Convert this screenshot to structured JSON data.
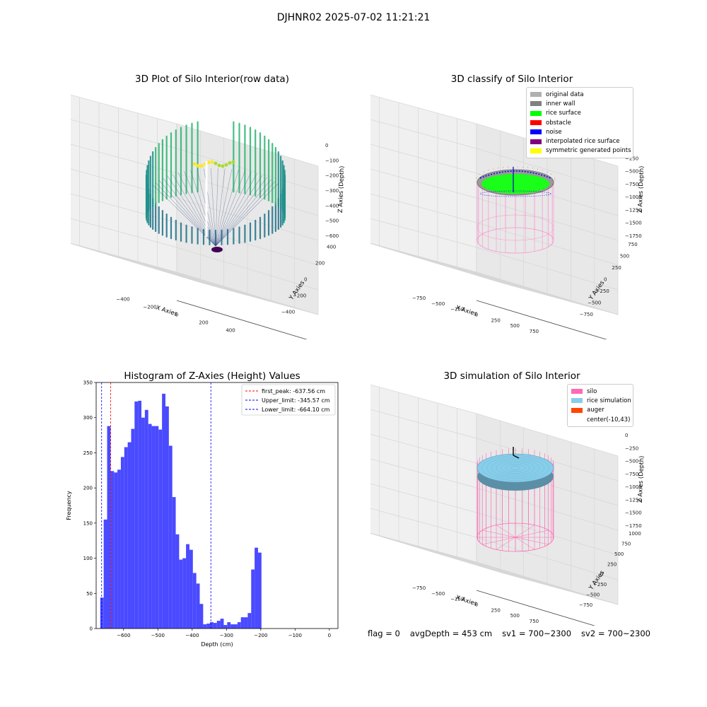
{
  "suptitle": "DJHNR02 2025-07-02 11:21:21",
  "panels": {
    "raw": {
      "title": "3D Plot of Silo Interior(row data)",
      "xlabel": "X Axies",
      "ylabel": "Y Axies",
      "zlabel": "Z Axies (Depth)",
      "xticks": [
        "−400",
        "−200",
        "0",
        "200",
        "400"
      ],
      "yticks": [
        "−400",
        "−200",
        "0",
        "200",
        "400"
      ],
      "zticks": [
        "0",
        "−100",
        "−200",
        "−300",
        "−400",
        "−500",
        "−600"
      ]
    },
    "classify": {
      "title": "3D classify of Silo Interior",
      "xlabel": "X Axies",
      "ylabel": "Y Axies",
      "zlabel": "Z Axies (Depth)",
      "xticks": [
        "−750",
        "−500",
        "−250",
        "0",
        "250",
        "500",
        "750"
      ],
      "yticks": [
        "−750",
        "−500",
        "−250",
        "0",
        "250",
        "500",
        "750"
      ],
      "zticks": [
        "0",
        "−250",
        "−500",
        "−750",
        "−1000",
        "−1250",
        "−1500",
        "−1750"
      ],
      "legend": [
        {
          "label": "original data",
          "color": "#b0b0b0"
        },
        {
          "label": "inner wall",
          "color": "#808080"
        },
        {
          "label": "rice surface",
          "color": "#00ff00"
        },
        {
          "label": "obstacle",
          "color": "#ff0000"
        },
        {
          "label": "noise",
          "color": "#0000ff"
        },
        {
          "label": "interpolated rice surface",
          "color": "#800080"
        },
        {
          "label": "symmetric generated points",
          "color": "#ffff00"
        }
      ]
    },
    "simulation": {
      "title": "3D simulation of Silo Interior",
      "xlabel": "X Axies",
      "ylabel": "Y Axies",
      "zlabel": "Z Axies (Depth)",
      "xticks": [
        "−750",
        "−500",
        "−250",
        "0",
        "250",
        "500",
        "750"
      ],
      "yticks": [
        "−750",
        "−500",
        "−250",
        "0",
        "250",
        "500",
        "750",
        "1000"
      ],
      "zticks": [
        "0",
        "−250",
        "−500",
        "−750",
        "−1000",
        "−1250",
        "−1500",
        "−1750"
      ],
      "legend": [
        {
          "label": "silo",
          "color": "#ff69b4"
        },
        {
          "label": "rice simulation",
          "color": "#87ceeb"
        },
        {
          "label": "auger",
          "color": "#ff4500"
        },
        {
          "label": "center(-10,43)",
          "color": "#ffffff"
        }
      ]
    }
  },
  "footer": {
    "flag": "flag = 0",
    "avg": "avgDepth = 453 cm",
    "sv1": "sv1 = 700~2300",
    "sv2": "sv2 = 700~2300"
  },
  "chart_data": {
    "type": "bar",
    "title": "Histogram of Z-Axies (Height) Values",
    "xlabel": "Depth (cm)",
    "ylabel": "Frequency",
    "xlim": [
      -680,
      25
    ],
    "ylim": [
      0,
      350
    ],
    "xticks": [
      -600,
      -500,
      -400,
      -300,
      -200,
      -100,
      0
    ],
    "yticks": [
      0,
      50,
      100,
      150,
      200,
      250,
      300,
      350
    ],
    "bar_color": "#4a4aff",
    "bin_start": -668,
    "bin_width": 10,
    "values": [
      44,
      155,
      288,
      224,
      222,
      226,
      244,
      258,
      265,
      284,
      323,
      324,
      300,
      311,
      291,
      288,
      288,
      283,
      334,
      316,
      260,
      187,
      134,
      98,
      100,
      120,
      112,
      79,
      64,
      35,
      6,
      7,
      9,
      8,
      11,
      14,
      5,
      9,
      6,
      6,
      9,
      16,
      16,
      22,
      84,
      115,
      108
    ],
    "vlines": [
      {
        "x": -637.56,
        "label": "first_peak: -637.56 cm",
        "color": "#ff0000"
      },
      {
        "x": -345.57,
        "label": "Upper_limit: -345.57 cm",
        "color": "#0000ff"
      },
      {
        "x": -664.1,
        "label": "Lower_limit: -664.10 cm",
        "color": "#0000ff"
      }
    ],
    "legend_position": "upper right"
  }
}
